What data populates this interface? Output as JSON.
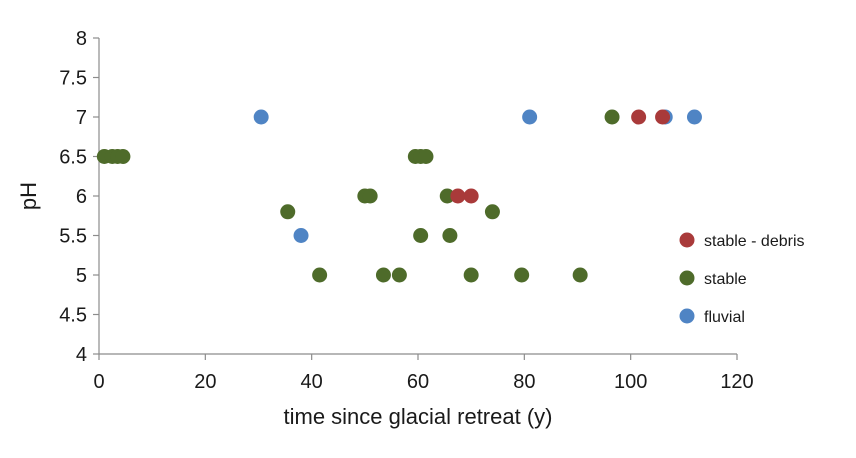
{
  "chart_data": {
    "type": "scatter",
    "title": "",
    "xlabel": "time since glacial retreat (y)",
    "ylabel": "pH",
    "xlim": [
      0,
      120
    ],
    "ylim": [
      4,
      8
    ],
    "x_ticks": [
      "0",
      "20",
      "40",
      "60",
      "80",
      "100",
      "120"
    ],
    "y_ticks": [
      "4",
      "4.5",
      "5",
      "5.5",
      "6",
      "6.5",
      "7",
      "7.5",
      "8"
    ],
    "grid": false,
    "legend_position": "right",
    "series": [
      {
        "name": "stable - debris",
        "color": "#a93a3a",
        "points": [
          {
            "x": 67.5,
            "y": 6.0
          },
          {
            "x": 70.0,
            "y": 6.0
          },
          {
            "x": 101.5,
            "y": 7.0
          },
          {
            "x": 106.0,
            "y": 7.0
          }
        ]
      },
      {
        "name": "stable",
        "color": "#4e6b2a",
        "points": [
          {
            "x": 1.0,
            "y": 6.5
          },
          {
            "x": 2.5,
            "y": 6.5
          },
          {
            "x": 3.5,
            "y": 6.5
          },
          {
            "x": 4.5,
            "y": 6.5
          },
          {
            "x": 35.5,
            "y": 5.8
          },
          {
            "x": 41.5,
            "y": 5.0
          },
          {
            "x": 50.0,
            "y": 6.0
          },
          {
            "x": 51.0,
            "y": 6.0
          },
          {
            "x": 53.5,
            "y": 5.0
          },
          {
            "x": 56.5,
            "y": 5.0
          },
          {
            "x": 59.5,
            "y": 6.5
          },
          {
            "x": 60.5,
            "y": 6.5
          },
          {
            "x": 61.5,
            "y": 6.5
          },
          {
            "x": 60.5,
            "y": 5.5
          },
          {
            "x": 65.5,
            "y": 6.0
          },
          {
            "x": 66.0,
            "y": 5.5
          },
          {
            "x": 70.0,
            "y": 5.0
          },
          {
            "x": 74.0,
            "y": 5.8
          },
          {
            "x": 79.5,
            "y": 5.0
          },
          {
            "x": 90.5,
            "y": 5.0
          },
          {
            "x": 96.5,
            "y": 7.0
          }
        ]
      },
      {
        "name": "fluvial",
        "color": "#4f84c4",
        "points": [
          {
            "x": 30.5,
            "y": 7.0
          },
          {
            "x": 38.0,
            "y": 5.5
          },
          {
            "x": 81.0,
            "y": 7.0
          },
          {
            "x": 106.5,
            "y": 7.0
          },
          {
            "x": 112.0,
            "y": 7.0
          }
        ]
      }
    ]
  }
}
